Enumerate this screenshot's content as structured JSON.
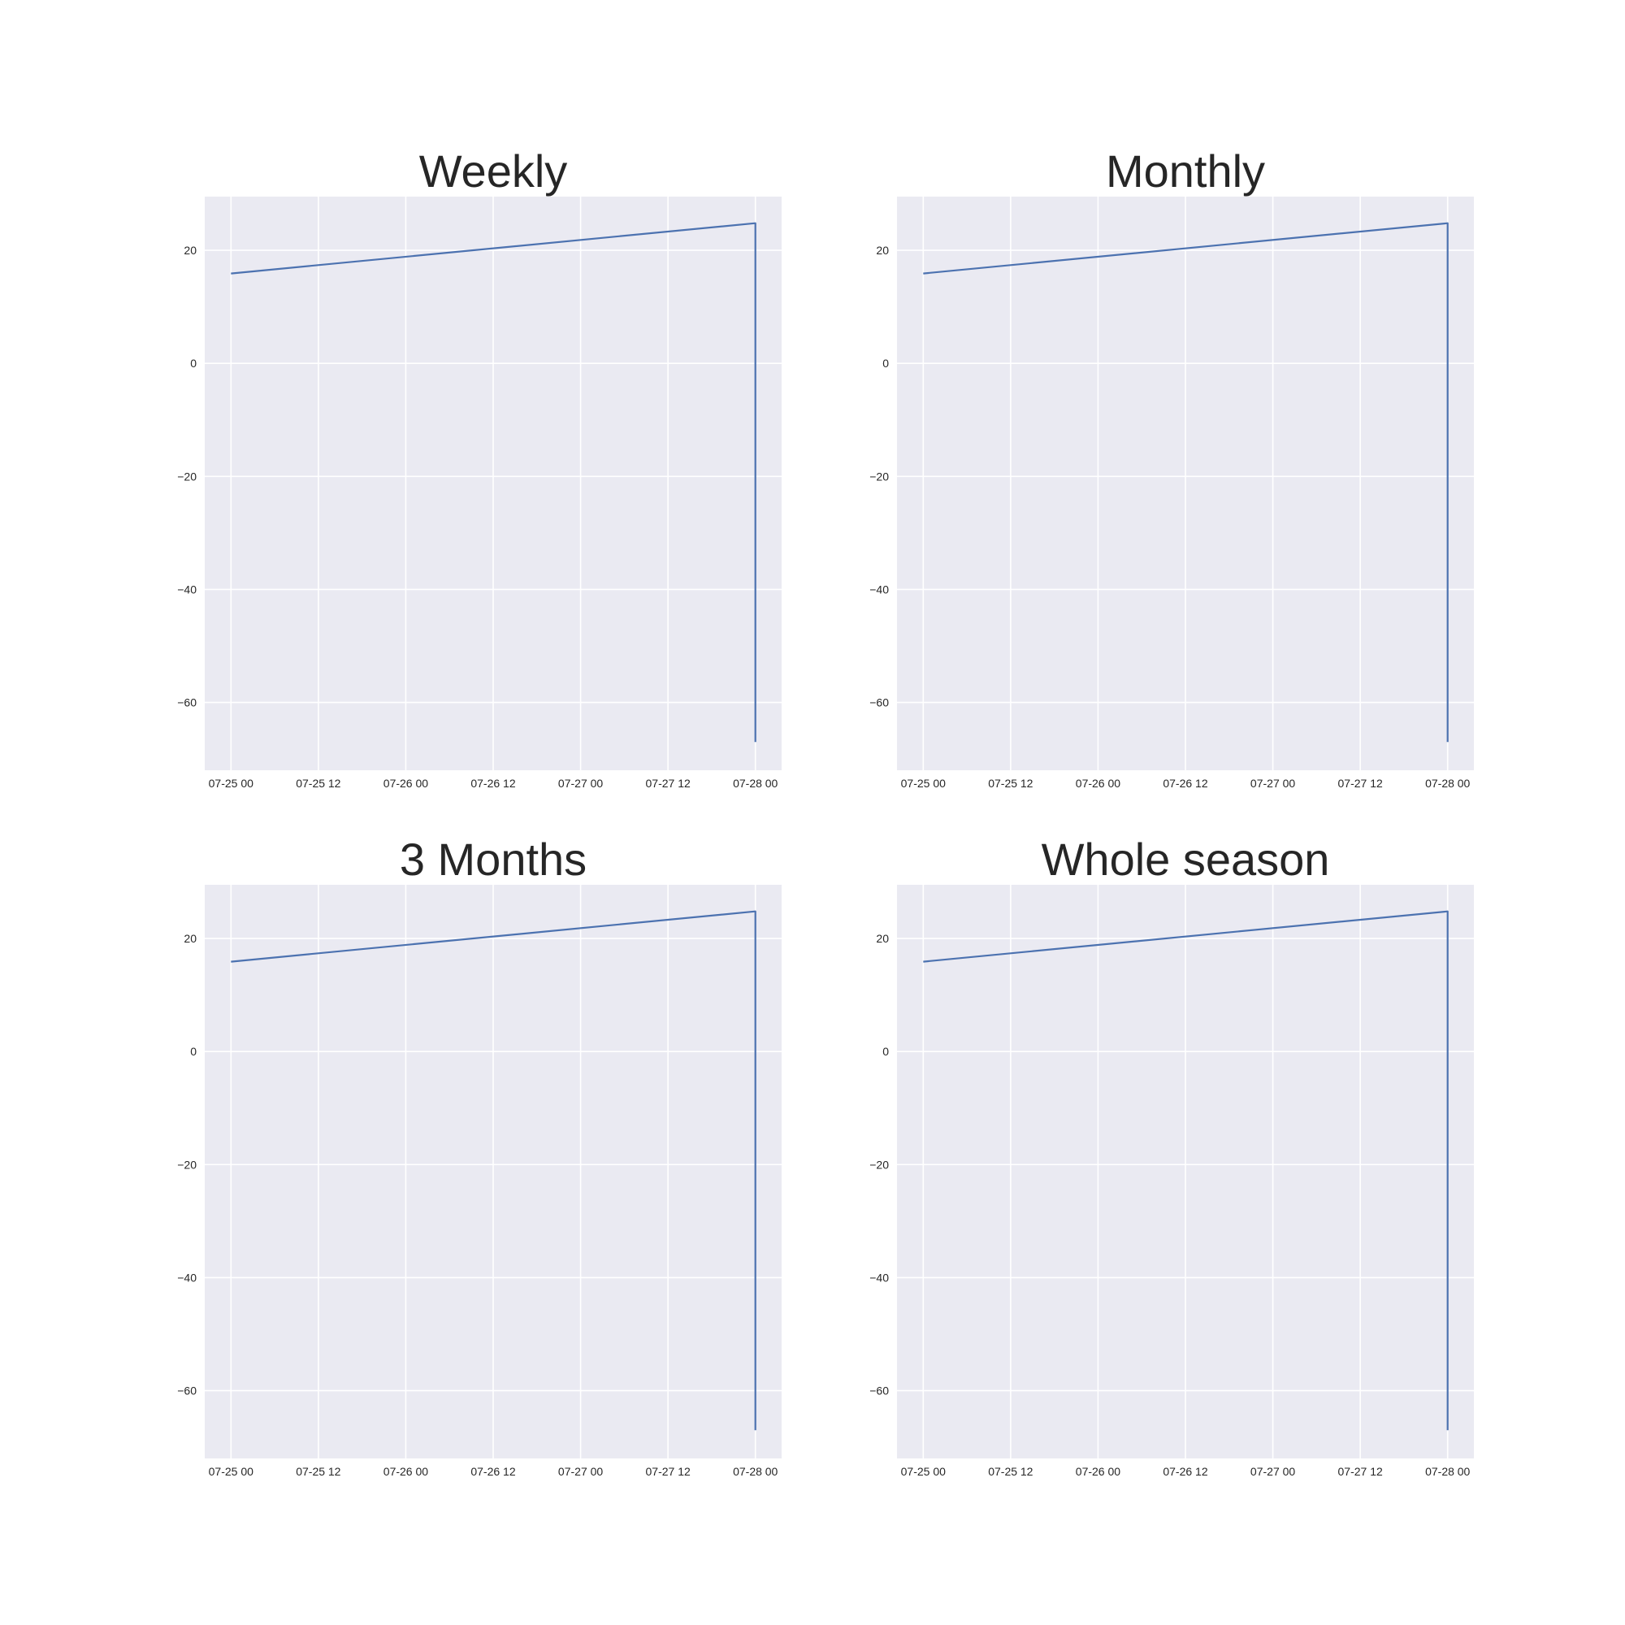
{
  "colors": {
    "plot_background": "#eaeaf2",
    "grid": "#ffffff",
    "series": "#4c72b0",
    "text": "#262626"
  },
  "chart_data": [
    {
      "type": "line",
      "title": "Weekly",
      "xlabel": "",
      "ylabel": "",
      "grid": true,
      "ylim": [
        -72,
        29.5
      ],
      "xlim": [
        "2023-07-24 20:24",
        "2023-07-28 03:36"
      ],
      "x_ticks": [
        "07-25 00",
        "07-25 12",
        "07-26 00",
        "07-26 12",
        "07-27 00",
        "07-27 12",
        "07-28 00"
      ],
      "y_ticks": [
        20,
        0,
        -20,
        -40,
        -60
      ],
      "series": [
        {
          "x": [
            "2023-07-25 00:00",
            "2023-07-28 00:00",
            "2023-07-28 00:00",
            "2023-07-28 00:00",
            "2023-07-28 00:00",
            "2023-07-28 00:00",
            "2023-07-28 00:00",
            "2023-07-28 00:00"
          ],
          "y": [
            15.9,
            24.8,
            24,
            15,
            23,
            -7,
            -16,
            -67
          ]
        }
      ]
    },
    {
      "type": "line",
      "title": "Monthly",
      "xlabel": "",
      "ylabel": "",
      "grid": true,
      "ylim": [
        -72,
        29.5
      ],
      "xlim": [
        "2023-07-24 20:24",
        "2023-07-28 03:36"
      ],
      "x_ticks": [
        "07-25 00",
        "07-25 12",
        "07-26 00",
        "07-26 12",
        "07-27 00",
        "07-27 12",
        "07-28 00"
      ],
      "y_ticks": [
        20,
        0,
        -20,
        -40,
        -60
      ],
      "series": [
        {
          "x": [
            "2023-07-25 00:00",
            "2023-07-28 00:00",
            "2023-07-28 00:00",
            "2023-07-28 00:00",
            "2023-07-28 00:00",
            "2023-07-28 00:00",
            "2023-07-28 00:00",
            "2023-07-28 00:00"
          ],
          "y": [
            15.9,
            24.8,
            24,
            15,
            23,
            -7,
            -16,
            -67
          ]
        }
      ]
    },
    {
      "type": "line",
      "title": "3 Months",
      "xlabel": "",
      "ylabel": "",
      "grid": true,
      "ylim": [
        -72,
        29.5
      ],
      "xlim": [
        "2023-07-24 20:24",
        "2023-07-28 03:36"
      ],
      "x_ticks": [
        "07-25 00",
        "07-25 12",
        "07-26 00",
        "07-26 12",
        "07-27 00",
        "07-27 12",
        "07-28 00"
      ],
      "y_ticks": [
        20,
        0,
        -20,
        -40,
        -60
      ],
      "series": [
        {
          "x": [
            "2023-07-25 00:00",
            "2023-07-28 00:00",
            "2023-07-28 00:00",
            "2023-07-28 00:00",
            "2023-07-28 00:00",
            "2023-07-28 00:00",
            "2023-07-28 00:00",
            "2023-07-28 00:00"
          ],
          "y": [
            15.9,
            24.8,
            24,
            15,
            23,
            -7,
            -16,
            -67
          ]
        }
      ]
    },
    {
      "type": "line",
      "title": "Whole season",
      "xlabel": "",
      "ylabel": "",
      "grid": true,
      "ylim": [
        -72,
        29.5
      ],
      "xlim": [
        "2023-07-24 20:24",
        "2023-07-28 03:36"
      ],
      "x_ticks": [
        "07-25 00",
        "07-25 12",
        "07-26 00",
        "07-26 12",
        "07-27 00",
        "07-27 12",
        "07-28 00"
      ],
      "y_ticks": [
        20,
        0,
        -20,
        -40,
        -60
      ],
      "series": [
        {
          "x": [
            "2023-07-25 00:00",
            "2023-07-28 00:00",
            "2023-07-28 00:00",
            "2023-07-28 00:00",
            "2023-07-28 00:00",
            "2023-07-28 00:00",
            "2023-07-28 00:00",
            "2023-07-28 00:00"
          ],
          "y": [
            15.9,
            24.8,
            24,
            15,
            23,
            -7,
            -16,
            -67
          ]
        }
      ]
    }
  ]
}
